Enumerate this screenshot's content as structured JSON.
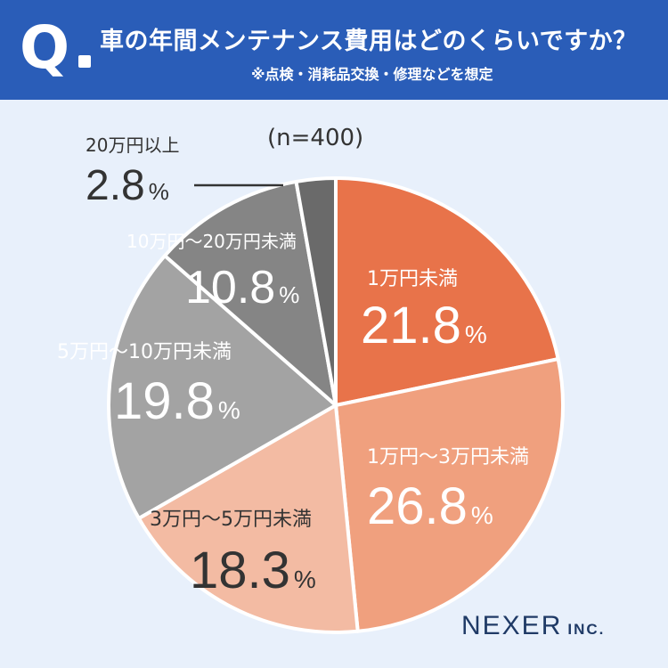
{
  "header": {
    "q_mark": "Q",
    "title": "車の年間メンテナンス費用はどのくらいですか？",
    "subtitle": "※点検・消耗品交換・修理などを想定"
  },
  "sample_size": "(n=400)",
  "logo": {
    "name": "NEXER",
    "suffix": "INC."
  },
  "colors": {
    "header_bg": "#2a5db8",
    "background": "#e8f0fb",
    "slice_1": "#e8734a",
    "slice_2": "#f0a07e",
    "slice_3": "#f3bba3",
    "slice_4": "#a3a3a3",
    "slice_5": "#858585",
    "slice_6": "#6a6a6a"
  },
  "chart_data": {
    "type": "pie",
    "unit": "%",
    "start": "12 o'clock",
    "direction": "clockwise",
    "slices": [
      {
        "label": "1万円未満",
        "value": 21.8,
        "value_text": "21.8"
      },
      {
        "label": "1万円～3万円未満",
        "value": 26.8,
        "value_text": "26.8"
      },
      {
        "label": "3万円～5万円未満",
        "value": 18.3,
        "value_text": "18.3"
      },
      {
        "label": "5万円～10万円未満",
        "value": 19.8,
        "value_text": "19.8"
      },
      {
        "label": "10万円～20万円未満",
        "value": 10.8,
        "value_text": "10.8"
      },
      {
        "label": "20万円以上",
        "value": 2.8,
        "value_text": "2.8"
      }
    ]
  }
}
